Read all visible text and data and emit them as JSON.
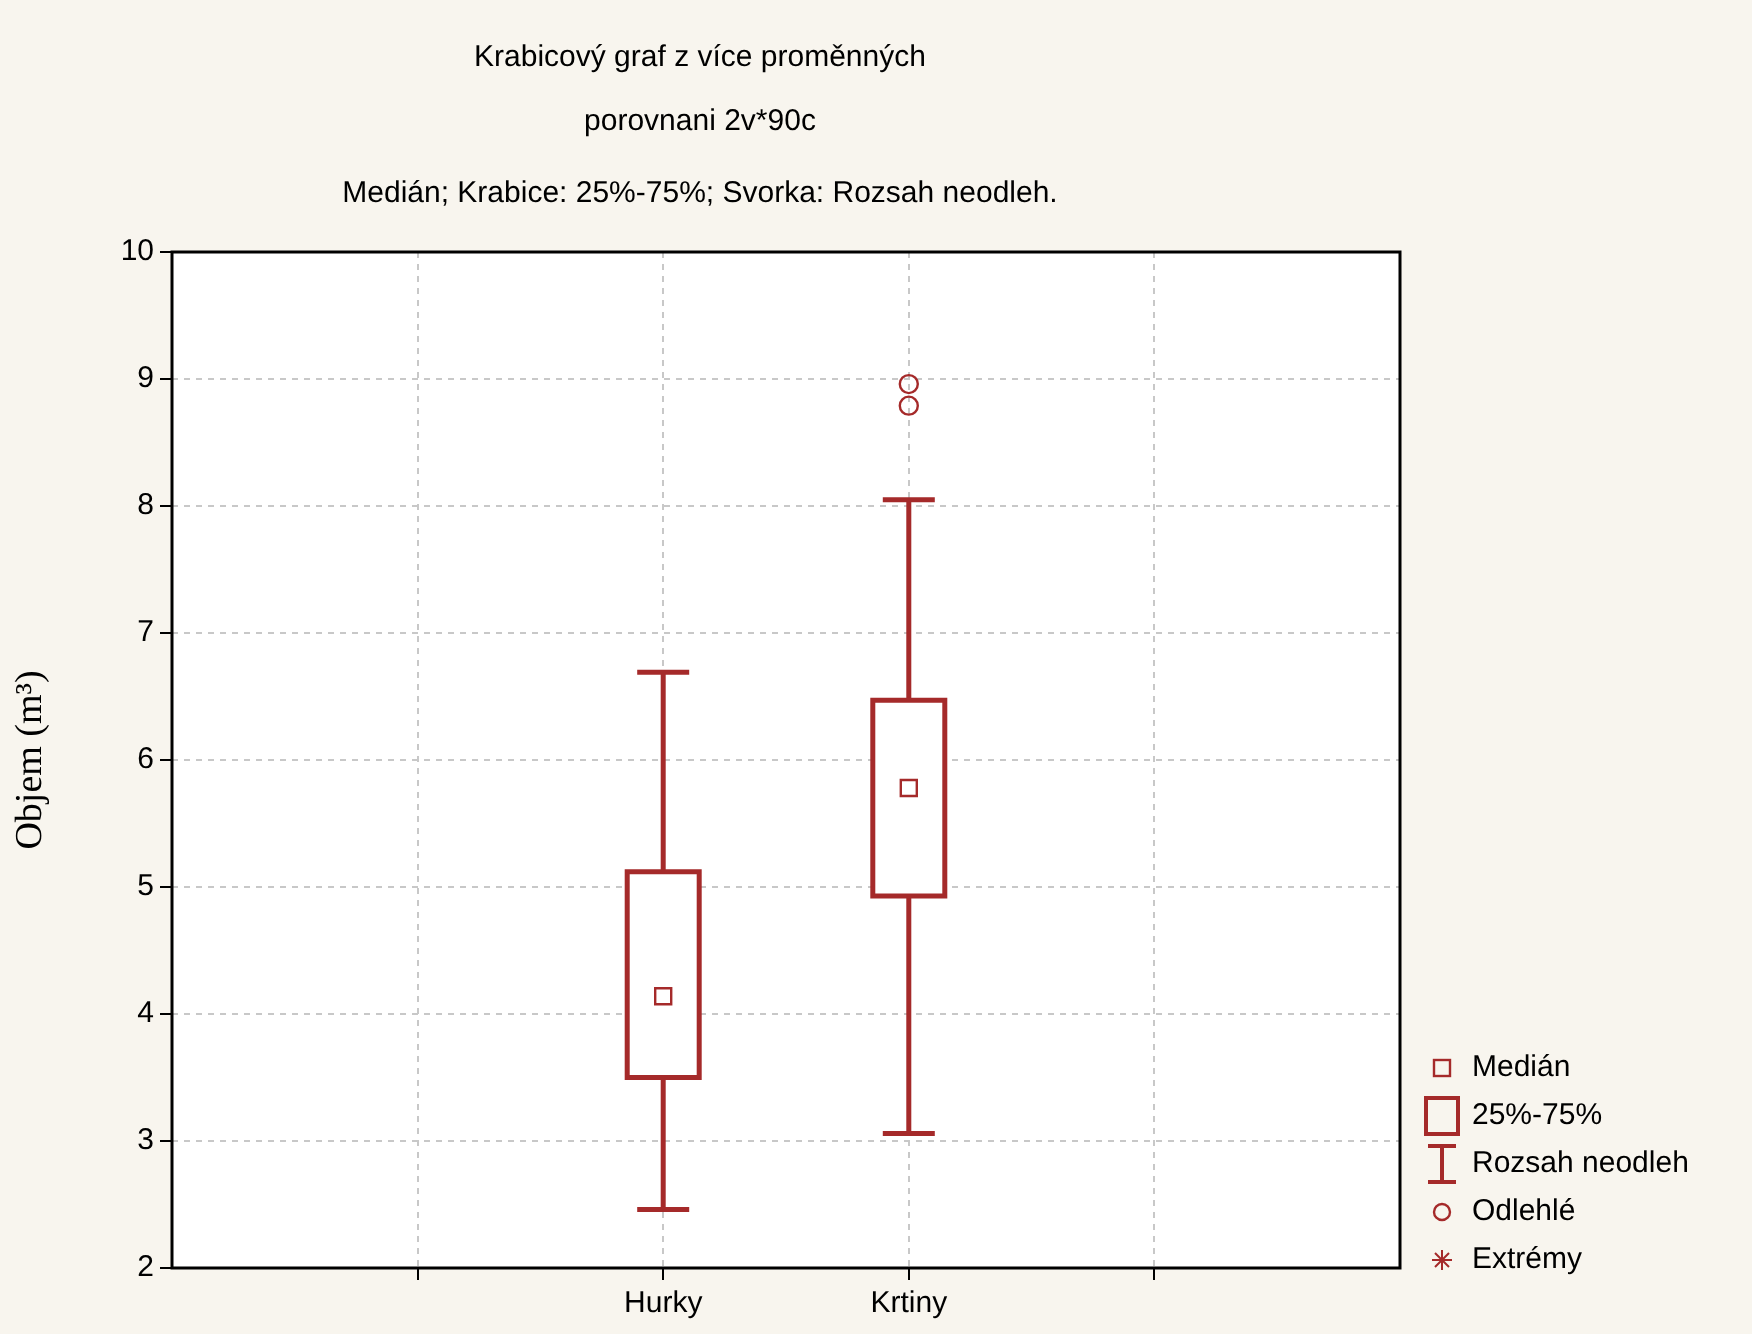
{
  "chart_data": {
    "type": "box",
    "title": "Krabicový graf z více proměnných",
    "subtitle": "porovnani 2v*90c",
    "ylabel": "Objem (m³)",
    "categories": [
      "Hurky",
      "Krtiny"
    ],
    "color": "#a52a2a",
    "boxes": [
      {
        "low": 2.46,
        "q1": 3.5,
        "median": 4.14,
        "q3": 5.12,
        "high": 6.69
      },
      {
        "low": 3.06,
        "q1": 4.93,
        "median": 5.78,
        "q3": 6.47,
        "high": 8.05,
        "outliers": [
          8.96,
          8.79
        ]
      }
    ],
    "ylim": [
      2,
      10
    ],
    "yticks": [
      2,
      3,
      4,
      5,
      6,
      7,
      8,
      9,
      10
    ],
    "grid": true,
    "annotations": [
      "Medián; Krabice: 25%-75%; Svorka: Rozsah neodleh.",
      "Medián",
      "25%-75%",
      "Rozsah neodleh",
      "Odlehlé",
      "Extrémy"
    ]
  }
}
